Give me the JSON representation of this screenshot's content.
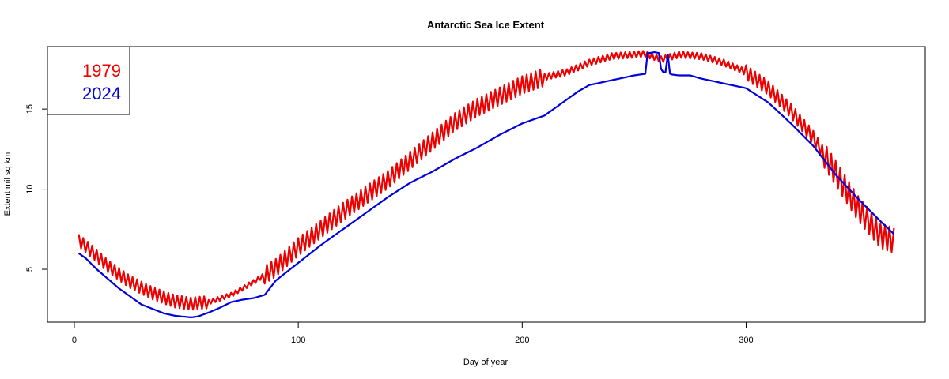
{
  "chart_data": {
    "type": "line",
    "title": "Antarctic Sea Ice Extent",
    "xlabel": "Day of year",
    "ylabel": "Extent mil sq km",
    "xlim": [
      -12,
      380
    ],
    "ylim": [
      1.7,
      18.9
    ],
    "xticks": [
      0,
      100,
      200,
      300
    ],
    "yticks": [
      5,
      10,
      15
    ],
    "xtick_labels": [
      "0",
      "100",
      "200",
      "300"
    ],
    "ytick_labels": [
      "5",
      "10",
      "15"
    ],
    "legend_position": "top-left",
    "series": [
      {
        "name": "1979",
        "color": "#ee0000",
        "oscillation": 0.55,
        "x": [
          2,
          8,
          15,
          25,
          35,
          45,
          52,
          60,
          70,
          80,
          90,
          100,
          110,
          120,
          130,
          140,
          150,
          160,
          170,
          180,
          190,
          200,
          210,
          220,
          230,
          240,
          250,
          255,
          262,
          270,
          280,
          290,
          300,
          310,
          320,
          330,
          340,
          350,
          360,
          366
        ],
        "values": [
          6.8,
          6.1,
          5.2,
          4.2,
          3.5,
          3.0,
          2.85,
          2.95,
          3.4,
          4.2,
          5.1,
          6.4,
          7.5,
          8.6,
          9.6,
          10.6,
          11.8,
          13.0,
          14.2,
          15.1,
          15.8,
          16.5,
          17.0,
          17.3,
          17.9,
          18.3,
          18.4,
          18.45,
          18.1,
          18.4,
          18.3,
          17.9,
          17.3,
          16.3,
          14.9,
          13.2,
          11.0,
          8.8,
          7.1,
          6.8
        ]
      },
      {
        "name": "2024",
        "color": "#0000dd",
        "oscillation": 0,
        "x": [
          2,
          5,
          10,
          20,
          30,
          40,
          45,
          52,
          55,
          60,
          65,
          70,
          75,
          80,
          85,
          90,
          100,
          110,
          120,
          130,
          140,
          150,
          160,
          170,
          180,
          190,
          200,
          210,
          215,
          220,
          225,
          230,
          240,
          250,
          255,
          256,
          257,
          259,
          261,
          262,
          263,
          264,
          265,
          266,
          267,
          270,
          275,
          280,
          290,
          300,
          310,
          320,
          330,
          340,
          350,
          360,
          366
        ],
        "values": [
          6.0,
          5.7,
          5.0,
          3.8,
          2.8,
          2.25,
          2.1,
          2.0,
          2.05,
          2.3,
          2.6,
          2.95,
          3.1,
          3.2,
          3.4,
          4.3,
          5.4,
          6.5,
          7.5,
          8.5,
          9.5,
          10.4,
          11.1,
          11.9,
          12.6,
          13.4,
          14.1,
          14.6,
          15.1,
          15.6,
          16.1,
          16.5,
          16.8,
          17.1,
          17.2,
          18.5,
          18.5,
          18.55,
          18.5,
          17.5,
          17.3,
          17.3,
          18.4,
          17.2,
          17.15,
          17.1,
          17.1,
          16.9,
          16.6,
          16.3,
          15.4,
          14.1,
          12.7,
          10.9,
          9.4,
          8.0,
          7.2
        ]
      }
    ]
  }
}
